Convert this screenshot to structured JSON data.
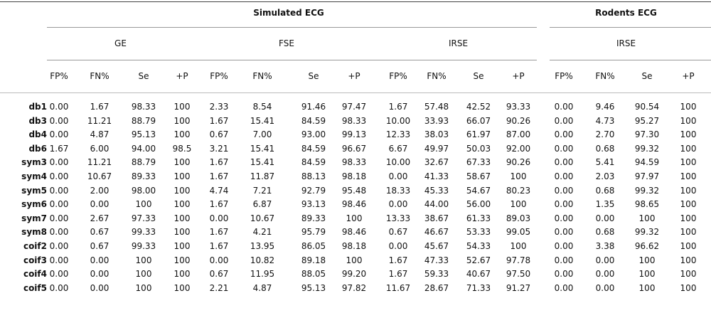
{
  "table": {
    "groups": [
      {
        "label": "Simulated ECG",
        "subgroups": [
          "GE",
          "FSE",
          "IRSE"
        ]
      },
      {
        "label": "Rodents ECG",
        "subgroups": [
          "IRSE"
        ]
      }
    ],
    "columns": [
      "FP%",
      "FN%",
      "Se",
      "+P"
    ],
    "rows": [
      {
        "label": "db1",
        "values": [
          "0.00",
          "1.67",
          "98.33",
          "100",
          "2.33",
          "8.54",
          "91.46",
          "97.47",
          "1.67",
          "57.48",
          "42.52",
          "93.33",
          "0.00",
          "9.46",
          "90.54",
          "100"
        ]
      },
      {
        "label": "db3",
        "values": [
          "0.00",
          "11.21",
          "88.79",
          "100",
          "1.67",
          "15.41",
          "84.59",
          "98.33",
          "10.00",
          "33.93",
          "66.07",
          "90.26",
          "0.00",
          "4.73",
          "95.27",
          "100"
        ]
      },
      {
        "label": "db4",
        "values": [
          "0.00",
          "4.87",
          "95.13",
          "100",
          "0.67",
          "7.00",
          "93.00",
          "99.13",
          "12.33",
          "38.03",
          "61.97",
          "87.00",
          "0.00",
          "2.70",
          "97.30",
          "100"
        ]
      },
      {
        "label": "db6",
        "values": [
          "1.67",
          "6.00",
          "94.00",
          "98.5",
          "3.21",
          "15.41",
          "84.59",
          "96.67",
          "6.67",
          "49.97",
          "50.03",
          "92.00",
          "0.00",
          "0.68",
          "99.32",
          "100"
        ]
      },
      {
        "label": "sym3",
        "values": [
          "0.00",
          "11.21",
          "88.79",
          "100",
          "1.67",
          "15.41",
          "84.59",
          "98.33",
          "10.00",
          "32.67",
          "67.33",
          "90.26",
          "0.00",
          "5.41",
          "94.59",
          "100"
        ]
      },
      {
        "label": "sym4",
        "values": [
          "0.00",
          "10.67",
          "89.33",
          "100",
          "1.67",
          "11.87",
          "88.13",
          "98.18",
          "0.00",
          "41.33",
          "58.67",
          "100",
          "0.00",
          "2.03",
          "97.97",
          "100"
        ]
      },
      {
        "label": "sym5",
        "values": [
          "0.00",
          "2.00",
          "98.00",
          "100",
          "4.74",
          "7.21",
          "92.79",
          "95.48",
          "18.33",
          "45.33",
          "54.67",
          "80.23",
          "0.00",
          "0.68",
          "99.32",
          "100"
        ]
      },
      {
        "label": "sym6",
        "values": [
          "0.00",
          "0.00",
          "100",
          "100",
          "1.67",
          "6.87",
          "93.13",
          "98.46",
          "0.00",
          "44.00",
          "56.00",
          "100",
          "0.00",
          "1.35",
          "98.65",
          "100"
        ]
      },
      {
        "label": "sym7",
        "values": [
          "0.00",
          "2.67",
          "97.33",
          "100",
          "0.00",
          "10.67",
          "89.33",
          "100",
          "13.33",
          "38.67",
          "61.33",
          "89.03",
          "0.00",
          "0.00",
          "100",
          "100"
        ]
      },
      {
        "label": "sym8",
        "values": [
          "0.00",
          "0.67",
          "99.33",
          "100",
          "1.67",
          "4.21",
          "95.79",
          "98.46",
          "0.67",
          "46.67",
          "53.33",
          "99.05",
          "0.00",
          "0.68",
          "99.32",
          "100"
        ]
      },
      {
        "label": "coif2",
        "values": [
          "0.00",
          "0.67",
          "99.33",
          "100",
          "1.67",
          "13.95",
          "86.05",
          "98.18",
          "0.00",
          "45.67",
          "54.33",
          "100",
          "0.00",
          "3.38",
          "96.62",
          "100"
        ]
      },
      {
        "label": "coif3",
        "values": [
          "0.00",
          "0.00",
          "100",
          "100",
          "0.00",
          "10.82",
          "89.18",
          "100",
          "1.67",
          "47.33",
          "52.67",
          "97.78",
          "0.00",
          "0.00",
          "100",
          "100"
        ]
      },
      {
        "label": "coif4",
        "values": [
          "0.00",
          "0.00",
          "100",
          "100",
          "0.67",
          "11.95",
          "88.05",
          "99.20",
          "1.67",
          "59.33",
          "40.67",
          "97.50",
          "0.00",
          "0.00",
          "100",
          "100"
        ]
      },
      {
        "label": "coif5",
        "values": [
          "0.00",
          "0.00",
          "100",
          "100",
          "2.21",
          "4.87",
          "95.13",
          "97.82",
          "11.67",
          "28.67",
          "71.33",
          "91.27",
          "0.00",
          "0.00",
          "100",
          "100"
        ]
      }
    ]
  }
}
